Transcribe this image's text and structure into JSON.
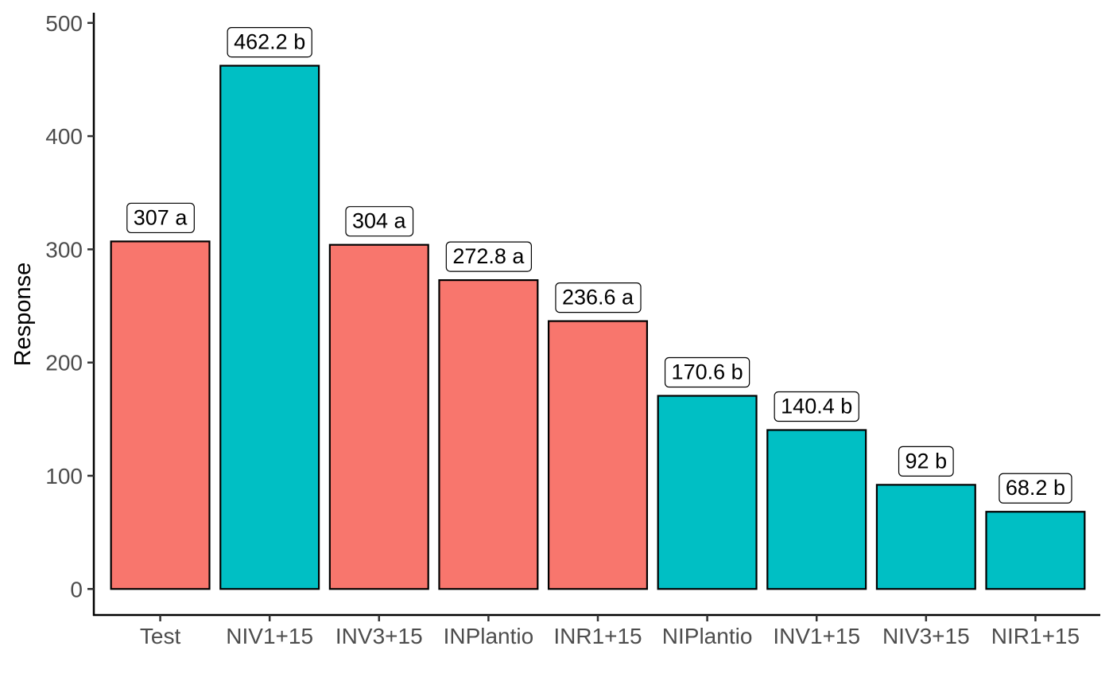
{
  "chart_data": {
    "type": "bar",
    "title": "",
    "xlabel": "",
    "ylabel": "Response",
    "ylim": [
      -23,
      509
    ],
    "yticks": [
      0,
      100,
      200,
      300,
      400,
      500
    ],
    "grid": false,
    "legend": "none",
    "categories": [
      "Test",
      "NIV1+15",
      "INV3+15",
      "INPlantio",
      "INR1+15",
      "NIPlantio",
      "INV1+15",
      "NIV3+15",
      "NIR1+15"
    ],
    "values": [
      307,
      462.2,
      304,
      272.8,
      236.6,
      170.6,
      140.4,
      92,
      68.2
    ],
    "labels": [
      "307 a",
      "462.2 b",
      "304 a",
      "272.8 a",
      "236.6 a",
      "170.6 b",
      "140.4 b",
      "92 b",
      "68.2 b"
    ],
    "groups": [
      "a",
      "b",
      "a",
      "a",
      "a",
      "b",
      "b",
      "b",
      "b"
    ],
    "colors": {
      "a": "#F8766D",
      "b": "#00BFC4"
    }
  }
}
